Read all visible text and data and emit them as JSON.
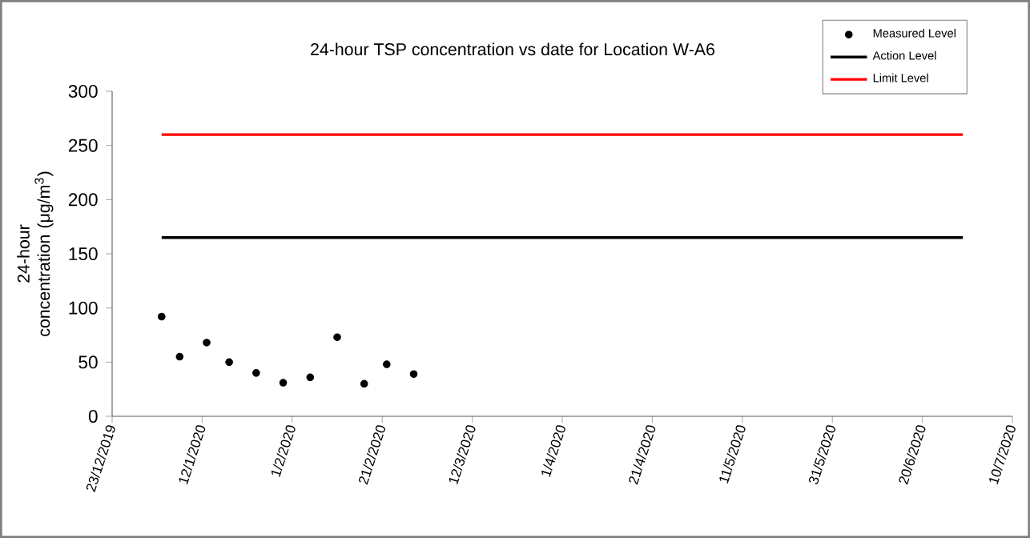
{
  "chart_data": {
    "type": "scatter",
    "title": "24-hour TSP concentration vs date for Location W-A6",
    "ylabel": "24-hour concentration (μg/m$^{3}$)",
    "xlim": [
      "2019-12-23",
      "2020-07-10"
    ],
    "xticks": [
      {
        "value": "2019-12-23",
        "label": "23/12/2019"
      },
      {
        "value": "2020-01-12",
        "label": "12/1/2020"
      },
      {
        "value": "2020-02-01",
        "label": "1/2/2020"
      },
      {
        "value": "2020-02-21",
        "label": "21/2/2020"
      },
      {
        "value": "2020-03-12",
        "label": "12/3/2020"
      },
      {
        "value": "2020-04-01",
        "label": "1/4/2020"
      },
      {
        "value": "2020-04-21",
        "label": "21/4/2020"
      },
      {
        "value": "2020-05-11",
        "label": "11/5/2020"
      },
      {
        "value": "2020-05-31",
        "label": "31/5/2020"
      },
      {
        "value": "2020-06-20",
        "label": "20/6/2020"
      },
      {
        "value": "2020-07-10",
        "label": "10/7/2020"
      }
    ],
    "ylim": [
      0,
      300
    ],
    "yticks": [
      0,
      50,
      100,
      150,
      200,
      250,
      300
    ],
    "legend": "top right",
    "series": [
      {
        "name": "Measured Level",
        "marker": "circle",
        "color": "#000000",
        "x": [
          "2020-01-03",
          "2020-01-07",
          "2020-01-13",
          "2020-01-18",
          "2020-01-24",
          "2020-01-30",
          "2020-02-05",
          "2020-02-11",
          "2020-02-17",
          "2020-02-22",
          "2020-02-28"
        ],
        "values": [
          92,
          55,
          68,
          50,
          40,
          31,
          36,
          73,
          30,
          48,
          39
        ]
      },
      {
        "name": "Action Level",
        "type": "line",
        "color": "#000000",
        "x": [
          "2020-01-03",
          "2020-06-29"
        ],
        "values": [
          165,
          165
        ]
      },
      {
        "name": "Limit Level",
        "type": "line",
        "color": "#ff0000",
        "x": [
          "2020-01-03",
          "2020-06-29"
        ],
        "values": [
          260,
          260
        ]
      }
    ]
  }
}
